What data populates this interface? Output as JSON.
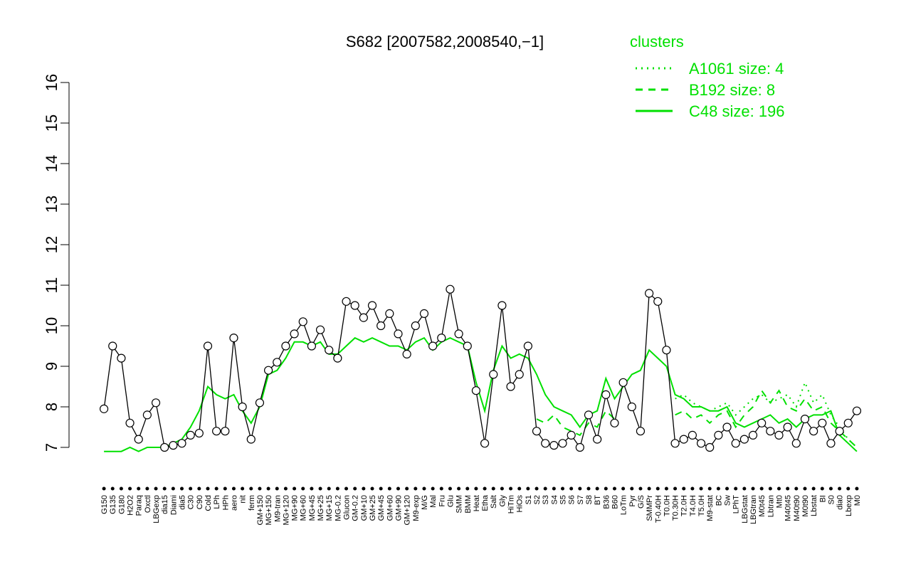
{
  "chart_data": {
    "type": "line",
    "title": "S682 [2007582,2008540,−1]",
    "legend_title": "clusters",
    "legend_color": "#00e000",
    "point_color": "#000000",
    "categories": [
      "G150",
      "G135",
      "G180",
      "H2O2",
      "Paraq",
      "Oxctl",
      "LBGexp",
      "dia15",
      "Diami",
      "dia5",
      "C30",
      "C90",
      "Cold",
      "LPh",
      "HPh",
      "aero",
      "nit",
      "ferm",
      "GM+150",
      "MG+150",
      "M9-tran",
      "MG+120",
      "MG+90",
      "MG+60",
      "MG+45",
      "MG+25",
      "MG+15",
      "MG-0.2",
      "Glucon",
      "GM-0.2",
      "GM+10",
      "GM+25",
      "GM+45",
      "GM+60",
      "GM+90",
      "GM+120",
      "M9-exp",
      "M/G",
      "Mal",
      "Fru",
      "Glu",
      "SMM",
      "BMM",
      "Heat",
      "Etha",
      "Salt",
      "Gly",
      "HiTm",
      "HiOs",
      "S1",
      "S2",
      "S3",
      "S4",
      "S5",
      "S6",
      "S7",
      "S8",
      "BT",
      "B36",
      "B60",
      "LoTm",
      "Pyr",
      "G/S",
      "SMMPr",
      "T-0.40H",
      "T0.0H",
      "T0.30H",
      "T2.0H",
      "T4.0H",
      "T5.0H",
      "M9-stat",
      "BC",
      "Sw",
      "LPhT",
      "LBGstat",
      "LBGtran",
      "M0t45",
      "Lbtran",
      "Mt0",
      "M40t45",
      "M40t90",
      "M0t90",
      "Lbstat",
      "BI",
      "S0",
      "dia0",
      "Lbexp",
      "M0"
    ],
    "values": [
      7.95,
      9.5,
      9.2,
      7.6,
      7.2,
      7.8,
      8.1,
      7.0,
      7.05,
      7.1,
      7.3,
      7.35,
      9.5,
      7.4,
      7.4,
      9.7,
      8.0,
      7.2,
      8.1,
      8.9,
      9.1,
      9.5,
      9.8,
      10.1,
      9.5,
      9.9,
      9.4,
      9.2,
      10.6,
      10.5,
      10.2,
      10.5,
      10.0,
      10.3,
      9.8,
      9.3,
      10.0,
      10.3,
      9.5,
      9.7,
      10.9,
      9.8,
      9.5,
      8.4,
      7.1,
      8.8,
      10.5,
      8.5,
      8.8,
      9.5,
      7.4,
      7.1,
      7.05,
      7.1,
      7.3,
      7.0,
      7.8,
      7.2,
      8.3,
      7.6,
      8.6,
      8.0,
      7.4,
      10.8,
      10.6,
      9.4,
      7.1,
      7.2,
      7.3,
      7.1,
      7.0,
      7.3,
      7.5,
      7.1,
      7.2,
      7.3,
      7.6,
      7.4,
      7.3,
      7.5,
      7.1,
      7.7,
      7.4,
      7.6,
      7.1,
      7.4,
      7.6,
      7.9
    ],
    "series": [
      {
        "name": "A1061 size: 4",
        "color": "#00e000",
        "dash": "dotted",
        "values": [
          null,
          null,
          null,
          null,
          null,
          null,
          null,
          null,
          null,
          null,
          null,
          null,
          null,
          null,
          null,
          null,
          null,
          null,
          null,
          null,
          null,
          null,
          null,
          null,
          null,
          null,
          null,
          null,
          null,
          null,
          null,
          null,
          null,
          null,
          null,
          null,
          null,
          null,
          null,
          null,
          null,
          null,
          null,
          null,
          null,
          null,
          null,
          null,
          null,
          null,
          null,
          null,
          null,
          null,
          null,
          null,
          null,
          null,
          null,
          null,
          null,
          null,
          null,
          null,
          null,
          null,
          8.2,
          8.3,
          8.1,
          8.0,
          7.9,
          8.0,
          8.1,
          7.8,
          8.0,
          8.2,
          8.3,
          8.1,
          8.2,
          8.3,
          8.0,
          8.6,
          8.1,
          8.3,
          7.8,
          7.5,
          7.2,
          7.0
        ]
      },
      {
        "name": "B192 size: 8",
        "color": "#00e000",
        "dash": "dashed",
        "values": [
          null,
          null,
          null,
          null,
          null,
          null,
          null,
          null,
          null,
          null,
          null,
          null,
          null,
          null,
          null,
          null,
          null,
          null,
          null,
          null,
          null,
          null,
          null,
          null,
          null,
          null,
          null,
          null,
          null,
          null,
          null,
          null,
          null,
          null,
          null,
          null,
          null,
          null,
          null,
          null,
          null,
          null,
          null,
          null,
          null,
          null,
          null,
          null,
          null,
          null,
          7.7,
          7.6,
          7.8,
          7.5,
          7.4,
          7.3,
          7.6,
          7.5,
          7.9,
          7.7,
          null,
          null,
          null,
          null,
          null,
          null,
          7.8,
          7.9,
          7.7,
          7.8,
          7.6,
          7.8,
          7.9,
          7.5,
          7.8,
          8.0,
          8.4,
          8.1,
          8.4,
          8.0,
          7.9,
          8.2,
          7.9,
          8.0,
          7.6,
          7.4,
          7.2,
          7.0
        ]
      },
      {
        "name": "C48 size: 196",
        "color": "#00e000",
        "dash": "solid",
        "values": [
          6.9,
          6.9,
          6.9,
          7.0,
          6.9,
          7.0,
          7.0,
          7.0,
          7.1,
          7.2,
          7.5,
          7.9,
          8.5,
          8.3,
          8.2,
          8.3,
          7.9,
          7.6,
          8.0,
          8.8,
          8.9,
          9.2,
          9.6,
          9.6,
          9.5,
          9.6,
          9.3,
          9.3,
          9.5,
          9.7,
          9.6,
          9.7,
          9.6,
          9.5,
          9.5,
          9.4,
          9.6,
          9.7,
          9.4,
          9.6,
          9.7,
          9.6,
          9.5,
          8.6,
          7.9,
          8.9,
          9.5,
          9.2,
          9.3,
          9.2,
          8.8,
          8.3,
          8.0,
          7.9,
          7.8,
          7.5,
          7.8,
          7.9,
          8.7,
          8.2,
          8.5,
          8.8,
          8.9,
          9.4,
          9.2,
          9.0,
          8.3,
          8.2,
          8.0,
          8.0,
          7.9,
          7.9,
          8.0,
          7.6,
          7.5,
          7.6,
          7.7,
          7.8,
          7.6,
          7.7,
          7.5,
          7.7,
          7.8,
          7.8,
          7.9,
          7.3,
          7.1,
          6.9
        ]
      }
    ],
    "ylim": [
      7,
      16
    ],
    "yticks": [
      7,
      8,
      9,
      10,
      11,
      12,
      13,
      14,
      15,
      16
    ]
  }
}
